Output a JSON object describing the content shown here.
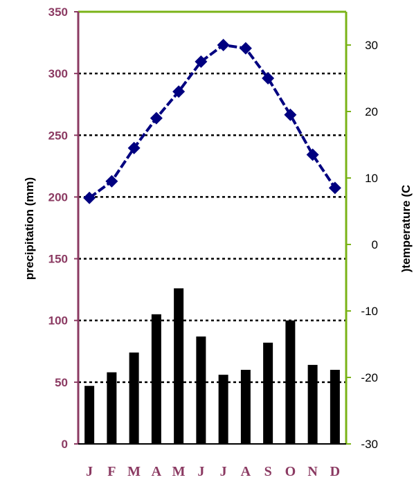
{
  "chart_data": {
    "type": "bar+line",
    "categories": [
      "J",
      "F",
      "M",
      "A",
      "M",
      "J",
      "J",
      "A",
      "S",
      "O",
      "N",
      "D"
    ],
    "series": [
      {
        "type": "bar",
        "axis": "left",
        "values": [
          47,
          58,
          74,
          105,
          126,
          87,
          56,
          60,
          82,
          100,
          64,
          60
        ]
      },
      {
        "type": "line",
        "axis": "right",
        "marker": "diamond",
        "values": [
          7,
          9.5,
          14.5,
          19,
          23,
          27.5,
          30,
          29.5,
          25,
          19.5,
          13.5,
          8.5
        ]
      }
    ],
    "y_left": {
      "label": "precipitation (mm)",
      "lim": [
        0,
        350
      ],
      "ticks": [
        "0",
        "50",
        "100",
        "150",
        "200",
        "250",
        "300",
        "350"
      ]
    },
    "y_right": {
      "label": ")temperature (C",
      "lim": [
        -30,
        35
      ],
      "ticks": [
        "-30",
        "-20",
        "-10",
        "0",
        "10",
        "20",
        "30"
      ]
    },
    "gridlines": [
      50,
      100,
      150,
      200,
      250,
      300
    ],
    "grid_style": "dotted",
    "colors": {
      "bars": "#000000",
      "line": "#000080",
      "left_axis": "#8b3a62",
      "right_axis": "#7ab317",
      "left_labels": "#8b3a62"
    }
  }
}
